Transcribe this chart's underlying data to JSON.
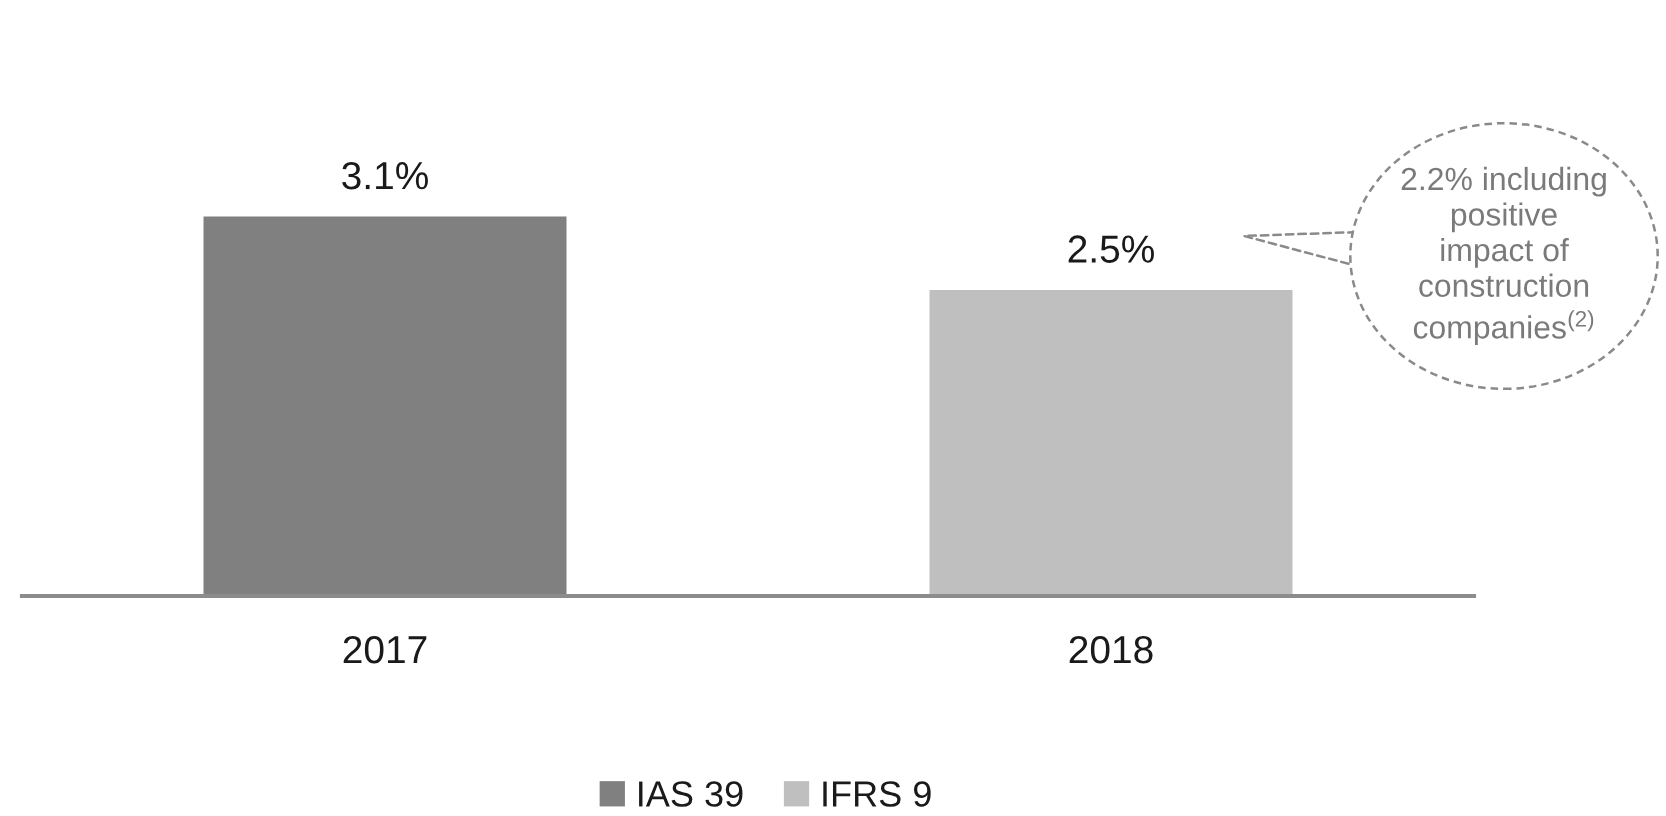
{
  "chart_data": {
    "type": "bar",
    "categories": [
      "2017",
      "2018"
    ],
    "series": [
      {
        "name": "IAS 39",
        "color": "#808080",
        "values": [
          3.1,
          null
        ],
        "value_labels": [
          "3.1%",
          null
        ]
      },
      {
        "name": "IFRS 9",
        "color": "#bfbfbf",
        "values": [
          null,
          2.5
        ],
        "value_labels": [
          null,
          "2.5%"
        ]
      }
    ],
    "annotations": [
      "2.2% including\npositive\nimpact of\nconstruction\ncompanies$^{(2)}$"
    ],
    "legend": "bottom",
    "tick_labels": "x"
  }
}
